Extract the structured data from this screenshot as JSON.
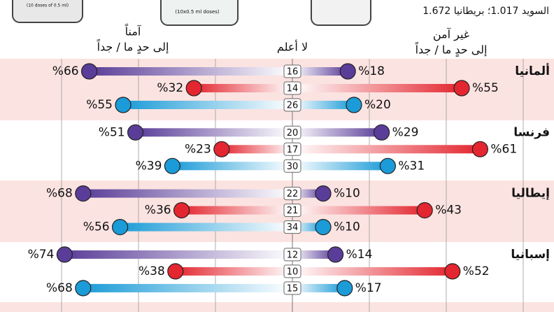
{
  "chart_data": {
    "type": "dumbbell",
    "note_top": "السويد 1.017؛ بريطانيا 1.672",
    "image_captions": [
      "(10 doses of 0.5 ml)",
      "(10x0.5 ml doses)"
    ],
    "header_left": [
      "آمناً",
      "إلى حدٍ ما / جداً"
    ],
    "header_center": "لا أعلم",
    "header_right": [
      "غير آمن",
      "إلى حدٍ ما / جداً"
    ],
    "categories": [
      "ألمانيا",
      "فرنسا",
      "إيطاليا",
      "إسبانيا"
    ],
    "xlim": [
      0,
      75
    ],
    "xticks": [
      25,
      50,
      75
    ],
    "grid": true,
    "series": [
      {
        "color": "#5a3d98",
        "safe": [
          66,
          51,
          68,
          74
        ],
        "safe_labels": [
          "%66",
          "%51",
          "%68",
          "%74"
        ],
        "unknown": [
          16,
          20,
          22,
          12
        ],
        "unsafe": [
          18,
          29,
          10,
          14
        ],
        "unsafe_labels": [
          "%18",
          "%29",
          "%10",
          "%14"
        ]
      },
      {
        "color": "#e3262f",
        "safe": [
          32,
          23,
          36,
          38
        ],
        "safe_labels": [
          "%32",
          "%23",
          "%36",
          "%38"
        ],
        "unknown": [
          14,
          17,
          21,
          10
        ],
        "unsafe": [
          55,
          61,
          43,
          52
        ],
        "unsafe_labels": [
          "%55",
          "%61",
          "%43",
          "%52"
        ]
      },
      {
        "color": "#1b9bd7",
        "safe": [
          55,
          39,
          56,
          68
        ],
        "safe_labels": [
          "%55",
          "%39",
          "%56",
          "%68"
        ],
        "unknown": [
          26,
          30,
          34,
          15
        ],
        "unsafe": [
          20,
          31,
          10,
          17
        ],
        "unsafe_labels": [
          "%20",
          "%31",
          "%10",
          "%17"
        ]
      }
    ]
  }
}
